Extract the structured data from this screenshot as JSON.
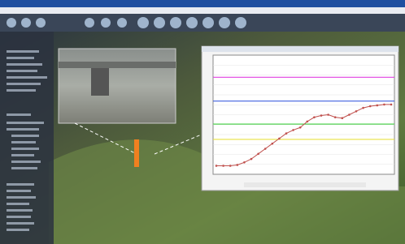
{
  "chart_data": {
    "type": "line",
    "categories": [
      null,
      null,
      null,
      null,
      null,
      null,
      null,
      null,
      null,
      null,
      null,
      null,
      null,
      null,
      null,
      null,
      null,
      null,
      null,
      null,
      null,
      null,
      null,
      null,
      null,
      null
    ],
    "values": [
      1.0,
      1.0,
      1.0,
      1.1,
      1.4,
      1.8,
      2.4,
      3.0,
      3.6,
      4.2,
      4.8,
      5.2,
      5.5,
      6.2,
      6.7,
      6.9,
      7.0,
      6.7,
      6.6,
      7.0,
      7.4,
      7.8,
      8.0,
      8.1,
      8.2,
      8.2
    ],
    "color": "#c0504d",
    "ylim": [
      0,
      14
    ],
    "reference_lines": [
      {
        "value": 11.4,
        "color": "#e040e0"
      },
      {
        "value": 8.6,
        "color": "#4060e0"
      },
      {
        "value": 5.9,
        "color": "#40d040"
      },
      {
        "value": 4.1,
        "color": "#e8e040"
      }
    ],
    "grid": true
  }
}
